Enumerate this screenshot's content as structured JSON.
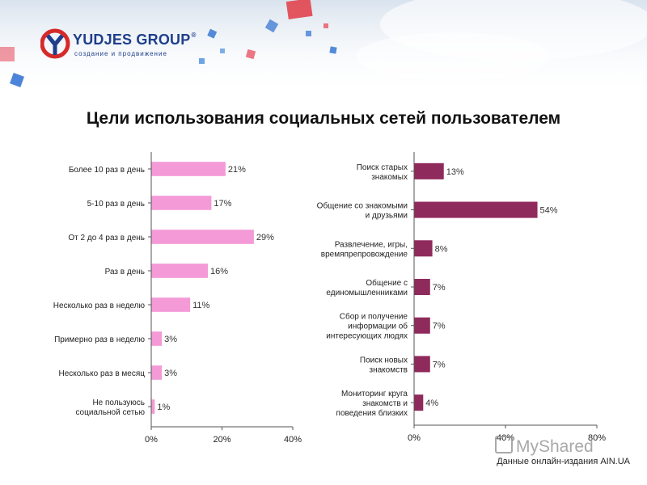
{
  "header": {
    "logo_name": "YUDJES GROUP",
    "logo_reg": "®",
    "logo_tagline": "создание и продвижение",
    "brand_color": "#1f3f8c",
    "logo_accent": "#d62a2a"
  },
  "title": "Цели использования социальных сетей пользователем",
  "source": "Данные онлайн-издания AIN.UA",
  "watermark": "MyShared",
  "chart_data": [
    {
      "type": "bar",
      "orientation": "horizontal",
      "title": "",
      "color": "#f49ad7",
      "categories": [
        "Более 10 раз в день",
        "5-10 раз в день",
        "От 2 до 4 раз в день",
        "Раз в день",
        "Несколько раз в неделю",
        "Примерно раз в неделю",
        "Несколько раз в месяц",
        "Не пользуюсь социальной сетью"
      ],
      "values": [
        21,
        17,
        29,
        16,
        11,
        3,
        3,
        1
      ],
      "value_labels": [
        "21%",
        "17%",
        "29%",
        "16%",
        "11%",
        "3%",
        "3%",
        "1%"
      ],
      "xlim": [
        0,
        40
      ],
      "ticks": [
        "0%",
        "20%",
        "40%"
      ],
      "grid": false
    },
    {
      "type": "bar",
      "orientation": "horizontal",
      "title": "",
      "color": "#8f2a5c",
      "categories": [
        "Поиск старых знакомых",
        "Общение со знакомыми и друзьями",
        "Развлечение, игры, времяпрепровождение",
        "Общение с единомышленниками",
        "Сбор и получение информации об интересующих людях",
        "Поиск новых знакомств",
        "Мониторинг круга знакомств и поведения близких"
      ],
      "values": [
        13,
        54,
        8,
        7,
        7,
        7,
        4
      ],
      "value_labels": [
        "13%",
        "54%",
        "8%",
        "7%",
        "7%",
        "7%",
        "4%"
      ],
      "xlim": [
        0,
        80
      ],
      "ticks": [
        "0%",
        "40%",
        "80%"
      ],
      "grid": false
    }
  ]
}
